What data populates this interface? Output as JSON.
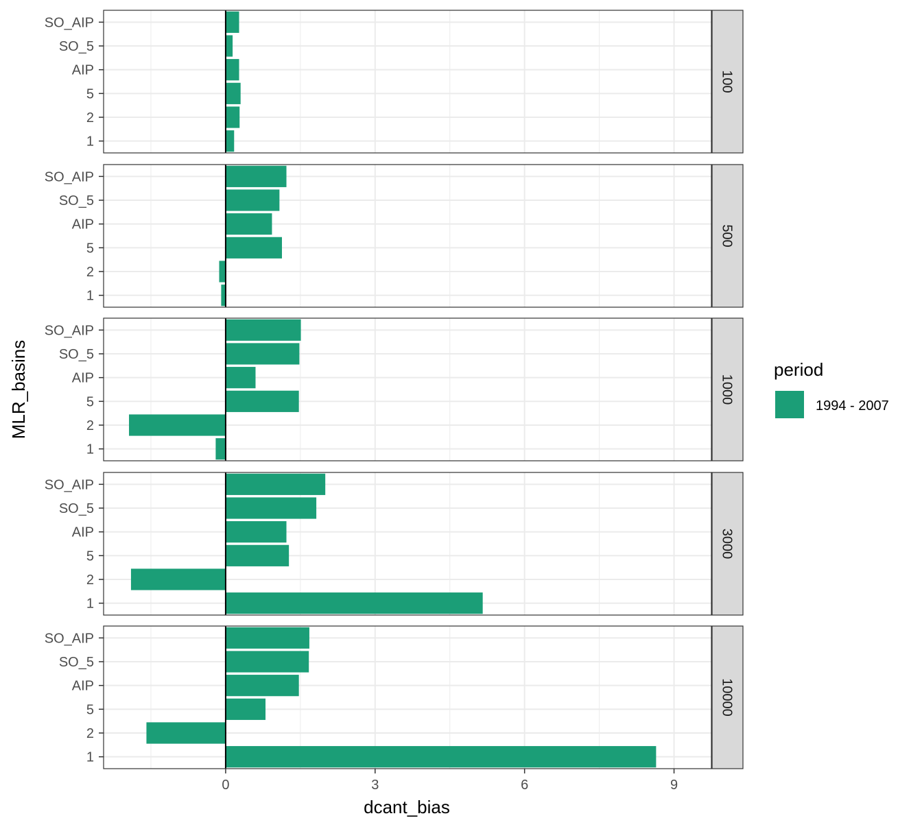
{
  "chart_data": {
    "type": "bar",
    "orientation": "horizontal",
    "xlabel": "dcant_bias",
    "ylabel": "MLR_basins",
    "xlim": [
      -2.45,
      9.75
    ],
    "x_ticks": [
      "0",
      "3",
      "6",
      "9"
    ],
    "x_tick_values": [
      0,
      3,
      6,
      9
    ],
    "categories": [
      "SO_AIP",
      "SO_5",
      "AIP",
      "5",
      "2",
      "1"
    ],
    "grid": true,
    "legend": {
      "title": "period",
      "position": "right",
      "entries": [
        "1994 - 2007"
      ]
    },
    "colors": {
      "bar": "#1b9e77",
      "strip": "#d9d9d9",
      "grid": "#ebebeb",
      "zero_line": "#000000"
    },
    "facets": [
      {
        "label": "100",
        "series": [
          {
            "name": "1994 - 2007",
            "values": [
              0.27,
              0.14,
              0.27,
              0.3,
              0.28,
              0.17
            ]
          }
        ]
      },
      {
        "label": "500",
        "series": [
          {
            "name": "1994 - 2007",
            "values": [
              1.22,
              1.08,
              0.93,
              1.13,
              -0.13,
              -0.09
            ]
          }
        ]
      },
      {
        "label": "1000",
        "series": [
          {
            "name": "1994 - 2007",
            "values": [
              1.51,
              1.48,
              0.6,
              1.47,
              -1.94,
              -0.2
            ]
          }
        ]
      },
      {
        "label": "3000",
        "series": [
          {
            "name": "1994 - 2007",
            "values": [
              2.0,
              1.82,
              1.22,
              1.27,
              -1.9,
              5.16
            ]
          }
        ]
      },
      {
        "label": "10000",
        "series": [
          {
            "name": "1994 - 2007",
            "values": [
              1.68,
              1.67,
              1.47,
              0.8,
              -1.59,
              8.64
            ]
          }
        ]
      }
    ]
  }
}
